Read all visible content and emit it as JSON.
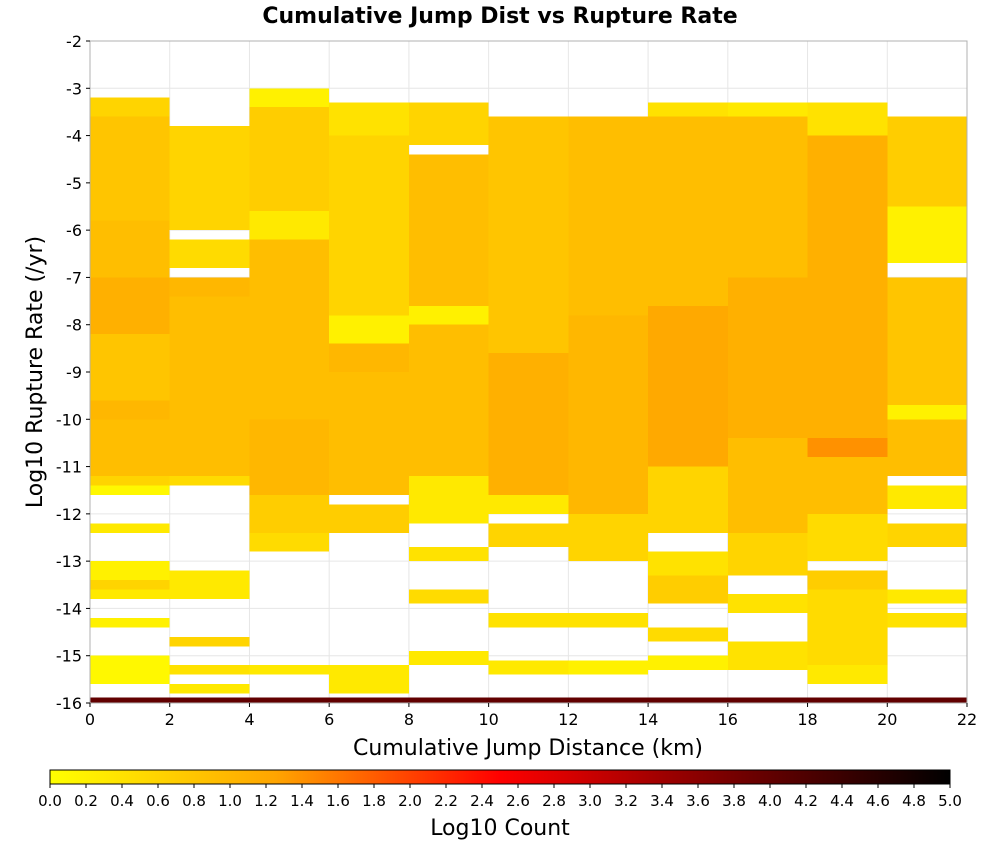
{
  "chart_data": {
    "type": "heatmap",
    "title": "Cumulative Jump Dist vs Rupture Rate",
    "xlabel": "Cumulative Jump Distance (km)",
    "ylabel": "Log10 Rupture Rate (/yr)",
    "colorbar_label": "Log10 Count",
    "xlim": [
      0,
      22
    ],
    "ylim": [
      -16,
      -2
    ],
    "x_ticks": [
      "0",
      "2",
      "4",
      "6",
      "8",
      "10",
      "12",
      "14",
      "16",
      "18",
      "20",
      "22"
    ],
    "y_ticks": [
      "-16",
      "-15",
      "-14",
      "-13",
      "-12",
      "-11",
      "-10",
      "-9",
      "-8",
      "-7",
      "-6",
      "-5",
      "-4",
      "-3",
      "-2"
    ],
    "colorbar_range": [
      0.0,
      5.0
    ],
    "colorbar_ticks": [
      "0.0",
      "0.2",
      "0.4",
      "0.6",
      "0.8",
      "1.0",
      "1.2",
      "1.4",
      "1.6",
      "1.8",
      "2.0",
      "2.2",
      "2.4",
      "2.6",
      "2.8",
      "3.0",
      "3.2",
      "3.4",
      "3.6",
      "3.8",
      "4.0",
      "4.2",
      "4.4",
      "4.6",
      "4.8",
      "5.0"
    ],
    "colormap": [
      "#ffff00",
      "#ffa500",
      "#ff0000",
      "#7a0000",
      "#000000"
    ],
    "grid": true,
    "x_bin_width": 2,
    "y_bin_height": 0.2,
    "bottom_row_value": 4.0,
    "cells": [
      {
        "x": 0,
        "y_from": -15.6,
        "y_to": -15.0,
        "v": 0.1
      },
      {
        "x": 0,
        "y_from": -14.4,
        "y_to": -14.2,
        "v": 0.2
      },
      {
        "x": 0,
        "y_from": -13.8,
        "y_to": -13.6,
        "v": 0.3
      },
      {
        "x": 0,
        "y_from": -13.6,
        "y_to": -13.4,
        "v": 0.6
      },
      {
        "x": 0,
        "y_from": -13.4,
        "y_to": -13.0,
        "v": 0.2
      },
      {
        "x": 0,
        "y_from": -12.4,
        "y_to": -12.2,
        "v": 0.3
      },
      {
        "x": 0,
        "y_from": -11.6,
        "y_to": -11.4,
        "v": 0.1
      },
      {
        "x": 0,
        "y_from": -11.4,
        "y_to": -11.2,
        "v": 0.6
      },
      {
        "x": 0,
        "y_from": -11.2,
        "y_to": -10.0,
        "v": 0.9
      },
      {
        "x": 0,
        "y_from": -10.0,
        "y_to": -9.6,
        "v": 1.0
      },
      {
        "x": 0,
        "y_from": -9.6,
        "y_to": -8.2,
        "v": 0.8
      },
      {
        "x": 0,
        "y_from": -8.2,
        "y_to": -7.0,
        "v": 1.1
      },
      {
        "x": 0,
        "y_from": -7.0,
        "y_to": -5.8,
        "v": 0.9
      },
      {
        "x": 0,
        "y_from": -5.8,
        "y_to": -3.6,
        "v": 0.8
      },
      {
        "x": 0,
        "y_from": -3.6,
        "y_to": -3.2,
        "v": 0.6
      },
      {
        "x": 2,
        "y_from": -15.8,
        "y_to": -15.6,
        "v": 0.3
      },
      {
        "x": 2,
        "y_from": -15.4,
        "y_to": -15.2,
        "v": 0.4
      },
      {
        "x": 2,
        "y_from": -14.8,
        "y_to": -14.6,
        "v": 0.6
      },
      {
        "x": 2,
        "y_from": -13.8,
        "y_to": -13.2,
        "v": 0.3
      },
      {
        "x": 2,
        "y_from": -11.4,
        "y_to": -11.2,
        "v": 0.5
      },
      {
        "x": 2,
        "y_from": -11.2,
        "y_to": -7.4,
        "v": 0.9
      },
      {
        "x": 2,
        "y_from": -7.4,
        "y_to": -7.0,
        "v": 1.0
      },
      {
        "x": 2,
        "y_from": -6.8,
        "y_to": -6.2,
        "v": 0.5
      },
      {
        "x": 2,
        "y_from": -6.0,
        "y_to": -3.8,
        "v": 0.6
      },
      {
        "x": 4,
        "y_from": -15.4,
        "y_to": -15.2,
        "v": 0.3
      },
      {
        "x": 4,
        "y_from": -12.8,
        "y_to": -12.4,
        "v": 0.5
      },
      {
        "x": 4,
        "y_from": -12.4,
        "y_to": -11.6,
        "v": 0.7
      },
      {
        "x": 4,
        "y_from": -11.6,
        "y_to": -10.0,
        "v": 1.0
      },
      {
        "x": 4,
        "y_from": -10.0,
        "y_to": -6.2,
        "v": 0.9
      },
      {
        "x": 4,
        "y_from": -6.2,
        "y_to": -5.6,
        "v": 0.3
      },
      {
        "x": 4,
        "y_from": -5.6,
        "y_to": -3.4,
        "v": 0.7
      },
      {
        "x": 4,
        "y_from": -3.4,
        "y_to": -3.0,
        "v": 0.2
      },
      {
        "x": 6,
        "y_from": -15.8,
        "y_to": -15.2,
        "v": 0.3
      },
      {
        "x": 6,
        "y_from": -12.4,
        "y_to": -11.8,
        "v": 0.7
      },
      {
        "x": 6,
        "y_from": -11.6,
        "y_to": -9.0,
        "v": 0.9
      },
      {
        "x": 6,
        "y_from": -9.0,
        "y_to": -8.4,
        "v": 1.0
      },
      {
        "x": 6,
        "y_from": -8.4,
        "y_to": -7.8,
        "v": 0.2
      },
      {
        "x": 6,
        "y_from": -7.8,
        "y_to": -4.0,
        "v": 0.6
      },
      {
        "x": 6,
        "y_from": -4.0,
        "y_to": -3.3,
        "v": 0.4
      },
      {
        "x": 8,
        "y_from": -15.2,
        "y_to": -14.9,
        "v": 0.3
      },
      {
        "x": 8,
        "y_from": -13.9,
        "y_to": -13.6,
        "v": 0.5
      },
      {
        "x": 8,
        "y_from": -13.0,
        "y_to": -12.7,
        "v": 0.4
      },
      {
        "x": 8,
        "y_from": -12.2,
        "y_to": -11.2,
        "v": 0.3
      },
      {
        "x": 8,
        "y_from": -11.2,
        "y_to": -8.0,
        "v": 0.9
      },
      {
        "x": 8,
        "y_from": -8.0,
        "y_to": -7.6,
        "v": 0.2
      },
      {
        "x": 8,
        "y_from": -7.6,
        "y_to": -4.4,
        "v": 0.9
      },
      {
        "x": 8,
        "y_from": -4.2,
        "y_to": -3.3,
        "v": 0.6
      },
      {
        "x": 10,
        "y_from": -15.4,
        "y_to": -15.1,
        "v": 0.3
      },
      {
        "x": 10,
        "y_from": -14.4,
        "y_to": -14.1,
        "v": 0.4
      },
      {
        "x": 10,
        "y_from": -12.7,
        "y_to": -12.2,
        "v": 0.6
      },
      {
        "x": 10,
        "y_from": -12.0,
        "y_to": -11.6,
        "v": 0.3
      },
      {
        "x": 10,
        "y_from": -11.6,
        "y_to": -8.6,
        "v": 1.1
      },
      {
        "x": 10,
        "y_from": -8.6,
        "y_to": -3.6,
        "v": 0.8
      },
      {
        "x": 12,
        "y_from": -15.4,
        "y_to": -15.1,
        "v": 0.2
      },
      {
        "x": 12,
        "y_from": -14.4,
        "y_to": -14.1,
        "v": 0.4
      },
      {
        "x": 12,
        "y_from": -13.0,
        "y_to": -12.0,
        "v": 0.6
      },
      {
        "x": 12,
        "y_from": -12.0,
        "y_to": -7.8,
        "v": 1.0
      },
      {
        "x": 12,
        "y_from": -7.8,
        "y_to": -3.6,
        "v": 0.9
      },
      {
        "x": 14,
        "y_from": -15.3,
        "y_to": -15.0,
        "v": 0.2
      },
      {
        "x": 14,
        "y_from": -14.7,
        "y_to": -14.4,
        "v": 0.5
      },
      {
        "x": 14,
        "y_from": -13.9,
        "y_to": -13.3,
        "v": 0.7
      },
      {
        "x": 14,
        "y_from": -13.3,
        "y_to": -12.8,
        "v": 0.4
      },
      {
        "x": 14,
        "y_from": -12.4,
        "y_to": -11.0,
        "v": 0.6
      },
      {
        "x": 14,
        "y_from": -11.0,
        "y_to": -7.6,
        "v": 1.2
      },
      {
        "x": 14,
        "y_from": -7.6,
        "y_to": -3.6,
        "v": 0.9
      },
      {
        "x": 14,
        "y_from": -3.6,
        "y_to": -3.3,
        "v": 0.4
      },
      {
        "x": 16,
        "y_from": -15.3,
        "y_to": -14.7,
        "v": 0.4
      },
      {
        "x": 16,
        "y_from": -14.1,
        "y_to": -13.7,
        "v": 0.4
      },
      {
        "x": 16,
        "y_from": -13.3,
        "y_to": -12.4,
        "v": 0.6
      },
      {
        "x": 16,
        "y_from": -12.4,
        "y_to": -10.4,
        "v": 0.9
      },
      {
        "x": 16,
        "y_from": -10.4,
        "y_to": -7.0,
        "v": 1.1
      },
      {
        "x": 16,
        "y_from": -7.0,
        "y_to": -3.6,
        "v": 0.9
      },
      {
        "x": 16,
        "y_from": -3.6,
        "y_to": -3.3,
        "v": 0.3
      },
      {
        "x": 18,
        "y_from": -15.6,
        "y_to": -15.2,
        "v": 0.3
      },
      {
        "x": 18,
        "y_from": -15.2,
        "y_to": -13.6,
        "v": 0.5
      },
      {
        "x": 18,
        "y_from": -13.6,
        "y_to": -13.2,
        "v": 0.7
      },
      {
        "x": 18,
        "y_from": -13.0,
        "y_to": -12.0,
        "v": 0.5
      },
      {
        "x": 18,
        "y_from": -12.0,
        "y_to": -10.8,
        "v": 0.9
      },
      {
        "x": 18,
        "y_from": -10.8,
        "y_to": -10.4,
        "v": 1.4
      },
      {
        "x": 18,
        "y_from": -10.4,
        "y_to": -4.0,
        "v": 1.1
      },
      {
        "x": 18,
        "y_from": -4.0,
        "y_to": -3.3,
        "v": 0.4
      },
      {
        "x": 20,
        "y_from": -14.4,
        "y_to": -14.1,
        "v": 0.4
      },
      {
        "x": 20,
        "y_from": -13.9,
        "y_to": -13.6,
        "v": 0.3
      },
      {
        "x": 20,
        "y_from": -12.7,
        "y_to": -12.2,
        "v": 0.6
      },
      {
        "x": 20,
        "y_from": -11.9,
        "y_to": -11.4,
        "v": 0.3
      },
      {
        "x": 20,
        "y_from": -11.2,
        "y_to": -10.0,
        "v": 0.9
      },
      {
        "x": 20,
        "y_from": -10.0,
        "y_to": -9.7,
        "v": 0.2
      },
      {
        "x": 20,
        "y_from": -9.7,
        "y_to": -7.0,
        "v": 0.8
      },
      {
        "x": 20,
        "y_from": -6.7,
        "y_to": -5.5,
        "v": 0.2
      },
      {
        "x": 20,
        "y_from": -5.5,
        "y_to": -3.6,
        "v": 0.7
      }
    ]
  }
}
